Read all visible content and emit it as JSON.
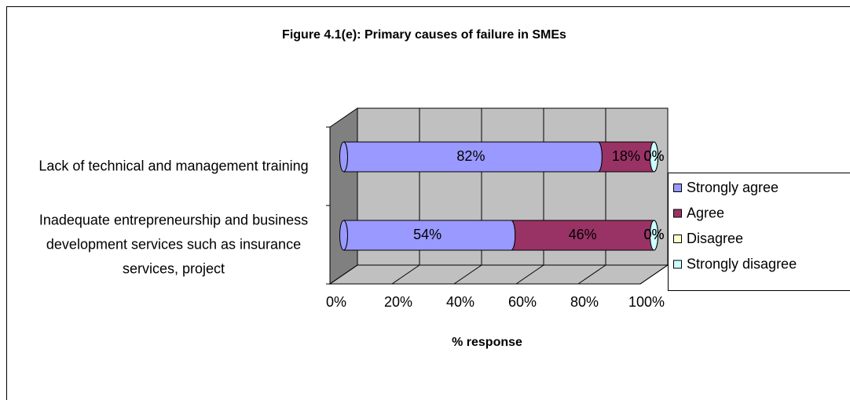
{
  "chart_data": {
    "type": "bar",
    "orientation": "horizontal",
    "stacked": "percent",
    "three_d": true,
    "title": "Figure 4.1(e): Primary causes of failure in SMEs",
    "x_label": "% response",
    "categories": [
      "Lack of technical and management training",
      "Inadequate entrepreneurship and business development services such as insurance services, project"
    ],
    "series": [
      {
        "name": "Strongly agree",
        "color": "#9999ff",
        "values": [
          82,
          54
        ],
        "value_labels": [
          "82%",
          "54%"
        ]
      },
      {
        "name": "Agree",
        "color": "#993366",
        "values": [
          18,
          46
        ],
        "value_labels": [
          "18%",
          "46%"
        ]
      },
      {
        "name": "Disagree",
        "color": "#ffffcc",
        "values": [
          0,
          0
        ],
        "value_labels": [
          "0%",
          "0%"
        ]
      },
      {
        "name": "Strongly disagree",
        "color": "#ccffff",
        "values": [
          0,
          0
        ],
        "value_labels": [
          "0%",
          "0%"
        ]
      }
    ],
    "xlim": [
      0,
      100
    ],
    "xticks": [
      {
        "value": 0,
        "label": "0%"
      },
      {
        "value": 20,
        "label": "20%"
      },
      {
        "value": 40,
        "label": "40%"
      },
      {
        "value": 60,
        "label": "60%"
      },
      {
        "value": 80,
        "label": "80%"
      },
      {
        "value": 100,
        "label": "100%"
      }
    ],
    "grid": true,
    "legend": "right"
  }
}
